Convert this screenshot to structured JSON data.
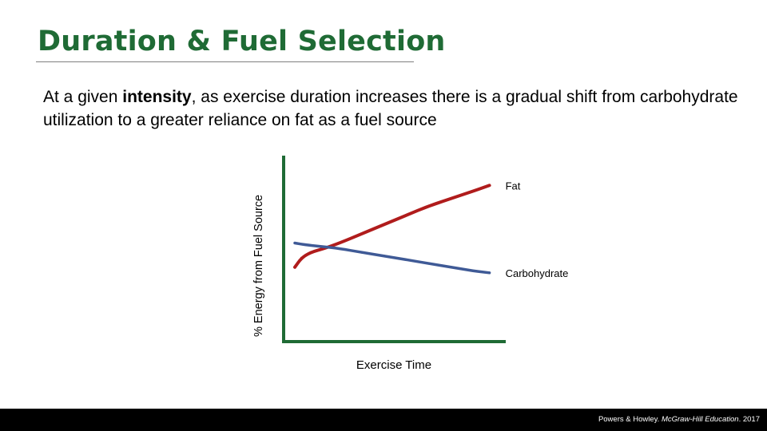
{
  "slide": {
    "title": "Duration & Fuel Selection",
    "subtitle": {
      "before": "At a given ",
      "emphasis": "intensity",
      "after": ", as exercise duration increases there is a gradual shift from carbohydrate utilization to a greater reliance on fat as a fuel source"
    },
    "credit": {
      "prefix": "Powers & Howley. ",
      "publisher": "McGraw-Hill Education",
      "suffix": ". 2017"
    }
  },
  "colors": {
    "title": "#1f6b35",
    "axis": "#1f6b35",
    "fat": "#b01c1c",
    "carbohydrate": "#3f5a96",
    "footer": "#000000"
  },
  "chart_data": {
    "type": "line",
    "xlabel": "Exercise Time",
    "ylabel": "% Energy from Fuel Source",
    "xlim": [
      0,
      100
    ],
    "ylim": [
      0,
      100
    ],
    "grid": false,
    "series": [
      {
        "name": "Fat",
        "color_key": "fat",
        "x": [
          5,
          8,
          12,
          18,
          25,
          35,
          45,
          55,
          65,
          75,
          85,
          92
        ],
        "y": [
          40,
          45,
          48,
          50,
          53,
          58,
          63,
          68,
          73,
          77,
          81,
          84
        ]
      },
      {
        "name": "Carbohydrate",
        "color_key": "carbohydrate",
        "x": [
          5,
          10,
          18,
          25,
          35,
          45,
          55,
          65,
          75,
          85,
          92
        ],
        "y": [
          53,
          52,
          51,
          50,
          48,
          46,
          44,
          42,
          40,
          38,
          37
        ]
      }
    ]
  }
}
